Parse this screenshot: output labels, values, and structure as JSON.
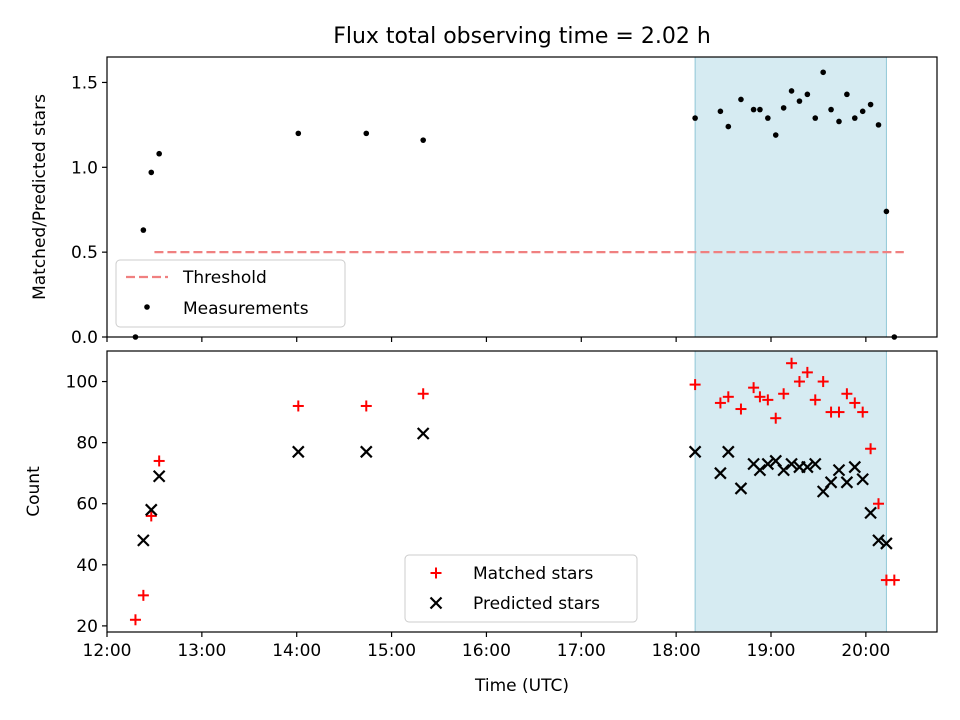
{
  "title": "Flux total observing time = 2.02 h",
  "chart_data": [
    {
      "type": "scatter",
      "ylabel": "Matched/Predicted stars",
      "xlim": [
        "12:00",
        "20:45"
      ],
      "ylim": [
        0,
        1.65
      ],
      "yticks": [
        {
          "value": 0,
          "label": "0.0"
        },
        {
          "value": 0.5,
          "label": "0.5"
        },
        {
          "value": 1.0,
          "label": "1.0"
        },
        {
          "value": 1.5,
          "label": "1.5"
        }
      ],
      "shaded_region": {
        "x": [
          "18:12",
          "20:13"
        ],
        "color": "#add8e6"
      },
      "threshold": {
        "name": "Threshold",
        "y": 0.5,
        "x": [
          "12:30",
          "20:24"
        ],
        "color": "#f08080",
        "dash": "dashed"
      },
      "series": [
        {
          "name": "Measurements",
          "marker": "dot",
          "color": "#000000",
          "points": [
            {
              "x": "12:18",
              "y": 0.0
            },
            {
              "x": "12:23",
              "y": 0.63
            },
            {
              "x": "12:28",
              "y": 0.97
            },
            {
              "x": "12:33",
              "y": 1.08
            },
            {
              "x": "14:01",
              "y": 1.2
            },
            {
              "x": "14:44",
              "y": 1.2
            },
            {
              "x": "15:20",
              "y": 1.16
            },
            {
              "x": "18:12",
              "y": 1.29
            },
            {
              "x": "18:28",
              "y": 1.33
            },
            {
              "x": "18:33",
              "y": 1.24
            },
            {
              "x": "18:41",
              "y": 1.4
            },
            {
              "x": "18:49",
              "y": 1.34
            },
            {
              "x": "18:53",
              "y": 1.34
            },
            {
              "x": "18:58",
              "y": 1.29
            },
            {
              "x": "19:03",
              "y": 1.19
            },
            {
              "x": "19:08",
              "y": 1.35
            },
            {
              "x": "19:13",
              "y": 1.45
            },
            {
              "x": "19:18",
              "y": 1.39
            },
            {
              "x": "19:23",
              "y": 1.43
            },
            {
              "x": "19:28",
              "y": 1.29
            },
            {
              "x": "19:33",
              "y": 1.56
            },
            {
              "x": "19:38",
              "y": 1.34
            },
            {
              "x": "19:43",
              "y": 1.27
            },
            {
              "x": "19:48",
              "y": 1.43
            },
            {
              "x": "19:53",
              "y": 1.29
            },
            {
              "x": "19:58",
              "y": 1.33
            },
            {
              "x": "20:03",
              "y": 1.37
            },
            {
              "x": "20:08",
              "y": 1.25
            },
            {
              "x": "20:13",
              "y": 0.74
            },
            {
              "x": "20:18",
              "y": 0.0
            }
          ]
        }
      ],
      "legend": {
        "position": "lower-left",
        "entries": [
          "Threshold",
          "Measurements"
        ]
      }
    },
    {
      "type": "scatter",
      "xlabel": "Time (UTC)",
      "ylabel": "Count",
      "xlim": [
        "12:00",
        "20:45"
      ],
      "ylim": [
        18,
        110
      ],
      "xticks": [
        "12:00",
        "13:00",
        "14:00",
        "15:00",
        "16:00",
        "17:00",
        "18:00",
        "19:00",
        "20:00"
      ],
      "yticks": [
        {
          "value": 20,
          "label": "20"
        },
        {
          "value": 40,
          "label": "40"
        },
        {
          "value": 60,
          "label": "60"
        },
        {
          "value": 80,
          "label": "80"
        },
        {
          "value": 100,
          "label": "100"
        }
      ],
      "shaded_region": {
        "x": [
          "18:12",
          "20:13"
        ],
        "color": "#add8e6"
      },
      "series": [
        {
          "name": "Matched stars",
          "marker": "plus",
          "color": "#ff0000",
          "points": [
            {
              "x": "12:18",
              "y": 22
            },
            {
              "x": "12:23",
              "y": 30
            },
            {
              "x": "12:28",
              "y": 56
            },
            {
              "x": "12:33",
              "y": 74
            },
            {
              "x": "14:01",
              "y": 92
            },
            {
              "x": "14:44",
              "y": 92
            },
            {
              "x": "15:20",
              "y": 96
            },
            {
              "x": "18:12",
              "y": 99
            },
            {
              "x": "18:28",
              "y": 93
            },
            {
              "x": "18:33",
              "y": 95
            },
            {
              "x": "18:41",
              "y": 91
            },
            {
              "x": "18:49",
              "y": 98
            },
            {
              "x": "18:53",
              "y": 95
            },
            {
              "x": "18:58",
              "y": 94
            },
            {
              "x": "19:03",
              "y": 88
            },
            {
              "x": "19:08",
              "y": 96
            },
            {
              "x": "19:13",
              "y": 106
            },
            {
              "x": "19:18",
              "y": 100
            },
            {
              "x": "19:23",
              "y": 103
            },
            {
              "x": "19:28",
              "y": 94
            },
            {
              "x": "19:33",
              "y": 100
            },
            {
              "x": "19:38",
              "y": 90
            },
            {
              "x": "19:43",
              "y": 90
            },
            {
              "x": "19:48",
              "y": 96
            },
            {
              "x": "19:53",
              "y": 93
            },
            {
              "x": "19:58",
              "y": 90
            },
            {
              "x": "20:03",
              "y": 78
            },
            {
              "x": "20:08",
              "y": 60
            },
            {
              "x": "20:13",
              "y": 35
            },
            {
              "x": "20:18",
              "y": 35
            }
          ]
        },
        {
          "name": "Predicted stars",
          "marker": "x",
          "color": "#000000",
          "points": [
            {
              "x": "12:23",
              "y": 48
            },
            {
              "x": "12:28",
              "y": 58
            },
            {
              "x": "12:33",
              "y": 69
            },
            {
              "x": "14:01",
              "y": 77
            },
            {
              "x": "14:44",
              "y": 77
            },
            {
              "x": "15:20",
              "y": 83
            },
            {
              "x": "18:12",
              "y": 77
            },
            {
              "x": "18:28",
              "y": 70
            },
            {
              "x": "18:33",
              "y": 77
            },
            {
              "x": "18:41",
              "y": 65
            },
            {
              "x": "18:49",
              "y": 73
            },
            {
              "x": "18:53",
              "y": 71
            },
            {
              "x": "18:58",
              "y": 73
            },
            {
              "x": "19:03",
              "y": 74
            },
            {
              "x": "19:08",
              "y": 71
            },
            {
              "x": "19:13",
              "y": 73
            },
            {
              "x": "19:18",
              "y": 72
            },
            {
              "x": "19:23",
              "y": 72
            },
            {
              "x": "19:28",
              "y": 73
            },
            {
              "x": "19:33",
              "y": 64
            },
            {
              "x": "19:38",
              "y": 67
            },
            {
              "x": "19:43",
              "y": 71
            },
            {
              "x": "19:48",
              "y": 67
            },
            {
              "x": "19:53",
              "y": 72
            },
            {
              "x": "19:58",
              "y": 68
            },
            {
              "x": "20:03",
              "y": 57
            },
            {
              "x": "20:08",
              "y": 48
            },
            {
              "x": "20:13",
              "y": 47
            }
          ]
        }
      ],
      "legend": {
        "position": "lower-center",
        "entries": [
          "Matched stars",
          "Predicted stars"
        ]
      }
    }
  ]
}
